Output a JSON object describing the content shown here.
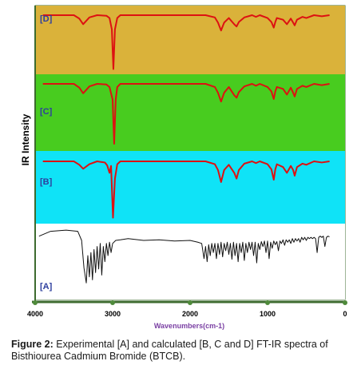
{
  "caption": {
    "label": "Figure 2:",
    "text": "Experimental [A] and calculated [B, C and D] FT-IR spectra of Bisthiourea Cadmium Bromide (BTCB)."
  },
  "chart_data": {
    "type": "line",
    "title": "",
    "xlabel": "Wavenumbers(cm-1)",
    "ylabel": "IR Intensity",
    "xlim": [
      4000,
      0
    ],
    "xticks": [
      "4000",
      "3000",
      "2000",
      "1000",
      "0"
    ],
    "xtick_values": [
      4000,
      3000,
      2000,
      1000,
      0
    ],
    "colors": {
      "D_background": "#DAB23A",
      "C_background": "#48CC1F",
      "B_background": "#0FE3F7",
      "A_background": "#FFFFFF",
      "calculated_line": "#DD1111",
      "experimental_line": "#111111",
      "axis_label": "#7A3FA3",
      "panel_label": "#2E3F9E",
      "frame": "#3D6B2F"
    },
    "panels": [
      {
        "label": "[D]",
        "x": [
          3900,
          3500,
          3430,
          3380,
          3300,
          3200,
          3080,
          3040,
          3010,
          2990,
          2970,
          2940,
          2900,
          1800,
          1680,
          1640,
          1600,
          1560,
          1500,
          1430,
          1400,
          1370,
          1300,
          1200,
          1150,
          1100,
          1000,
          950,
          920,
          900,
          880,
          800,
          750,
          700,
          670,
          650,
          620,
          550,
          500,
          400,
          300,
          200
        ],
        "y": [
          0.0,
          0.0,
          0.06,
          0.16,
          0.04,
          0.0,
          0.01,
          0.05,
          0.25,
          0.95,
          0.25,
          0.05,
          0.0,
          0.0,
          0.04,
          0.13,
          0.27,
          0.13,
          0.05,
          0.16,
          0.2,
          0.12,
          0.04,
          0.0,
          0.03,
          0.0,
          0.05,
          0.12,
          0.22,
          0.12,
          0.05,
          0.08,
          0.16,
          0.06,
          0.13,
          0.18,
          0.08,
          0.03,
          0.05,
          0.0,
          0.02,
          0.0
        ]
      },
      {
        "label": "[C]",
        "x": [
          3900,
          3500,
          3430,
          3380,
          3300,
          3200,
          3080,
          3040,
          3000,
          2980,
          2960,
          2940,
          2900,
          1800,
          1680,
          1640,
          1600,
          1560,
          1500,
          1430,
          1400,
          1370,
          1300,
          1200,
          1150,
          1100,
          1000,
          950,
          920,
          900,
          880,
          800,
          750,
          700,
          670,
          650,
          620,
          550,
          500,
          400,
          300,
          200
        ],
        "y": [
          0.0,
          0.0,
          0.06,
          0.15,
          0.04,
          0.0,
          0.01,
          0.05,
          0.25,
          0.95,
          0.25,
          0.05,
          0.0,
          0.0,
          0.05,
          0.14,
          0.28,
          0.14,
          0.05,
          0.18,
          0.22,
          0.13,
          0.04,
          0.0,
          0.03,
          0.0,
          0.05,
          0.12,
          0.24,
          0.12,
          0.05,
          0.08,
          0.17,
          0.06,
          0.14,
          0.2,
          0.08,
          0.03,
          0.05,
          0.0,
          0.02,
          0.0
        ]
      },
      {
        "label": "[B]",
        "x": [
          3900,
          3500,
          3430,
          3380,
          3300,
          3200,
          3100,
          3070,
          3040,
          3020,
          2995,
          2970,
          2940,
          2900,
          1800,
          1680,
          1640,
          1600,
          1560,
          1500,
          1430,
          1400,
          1370,
          1300,
          1200,
          1150,
          1100,
          1000,
          950,
          920,
          900,
          880,
          800,
          750,
          700,
          670,
          650,
          620,
          550,
          500,
          400,
          300,
          200
        ],
        "y": [
          0.0,
          0.0,
          0.06,
          0.13,
          0.05,
          0.0,
          0.02,
          0.07,
          0.2,
          0.08,
          0.98,
          0.3,
          0.05,
          0.0,
          0.0,
          0.05,
          0.15,
          0.36,
          0.15,
          0.06,
          0.2,
          0.3,
          0.15,
          0.04,
          0.0,
          0.03,
          0.0,
          0.05,
          0.14,
          0.32,
          0.14,
          0.05,
          0.1,
          0.2,
          0.08,
          0.15,
          0.25,
          0.1,
          0.04,
          0.06,
          0.0,
          0.02,
          0.0
        ]
      },
      {
        "label": "[A]",
        "x": [
          3950,
          3800,
          3600,
          3450,
          3400,
          3370,
          3340,
          3320,
          3300,
          3280,
          3260,
          3240,
          3220,
          3200,
          3180,
          3160,
          3140,
          3120,
          3100,
          3080,
          3060,
          3040,
          3020,
          3000,
          2960,
          2900,
          2800,
          2600,
          2400,
          2200,
          2000,
          1900,
          1850,
          1820,
          1800,
          1780,
          1760,
          1740,
          1720,
          1700,
          1680,
          1660,
          1640,
          1620,
          1600,
          1580,
          1560,
          1540,
          1520,
          1500,
          1480,
          1460,
          1440,
          1420,
          1400,
          1380,
          1360,
          1340,
          1320,
          1300,
          1280,
          1260,
          1240,
          1220,
          1200,
          1180,
          1160,
          1140,
          1120,
          1100,
          1080,
          1060,
          1040,
          1020,
          1000,
          980,
          960,
          940,
          920,
          900,
          880,
          860,
          840,
          820,
          800,
          780,
          760,
          740,
          720,
          700,
          680,
          660,
          640,
          620,
          600,
          580,
          560,
          540,
          520,
          500,
          480,
          460,
          440,
          420,
          400,
          380,
          360,
          340,
          320,
          300,
          280,
          260,
          240,
          220,
          200
        ],
        "y": [
          0.18,
          0.1,
          0.08,
          0.1,
          0.25,
          0.7,
          0.95,
          0.5,
          0.85,
          0.45,
          0.9,
          0.4,
          0.78,
          0.35,
          0.72,
          0.3,
          0.82,
          0.35,
          0.6,
          0.3,
          0.5,
          0.28,
          0.45,
          0.3,
          0.25,
          0.24,
          0.22,
          0.25,
          0.24,
          0.26,
          0.25,
          0.28,
          0.3,
          0.55,
          0.35,
          0.6,
          0.32,
          0.5,
          0.3,
          0.45,
          0.3,
          0.55,
          0.3,
          0.48,
          0.28,
          0.52,
          0.3,
          0.42,
          0.28,
          0.48,
          0.3,
          0.56,
          0.28,
          0.5,
          0.3,
          0.6,
          0.3,
          0.45,
          0.28,
          0.58,
          0.3,
          0.45,
          0.28,
          0.4,
          0.28,
          0.5,
          0.28,
          0.62,
          0.3,
          0.4,
          0.27,
          0.35,
          0.26,
          0.45,
          0.26,
          0.55,
          0.28,
          0.38,
          0.26,
          0.32,
          0.27,
          0.42,
          0.26,
          0.3,
          0.24,
          0.33,
          0.24,
          0.28,
          0.24,
          0.3,
          0.22,
          0.28,
          0.22,
          0.26,
          0.22,
          0.28,
          0.2,
          0.24,
          0.2,
          0.25,
          0.2,
          0.22,
          0.2,
          0.22,
          0.2,
          0.22,
          0.45,
          0.2,
          0.18,
          0.2,
          0.18,
          0.35,
          0.2,
          0.18,
          0.19
        ]
      }
    ]
  }
}
